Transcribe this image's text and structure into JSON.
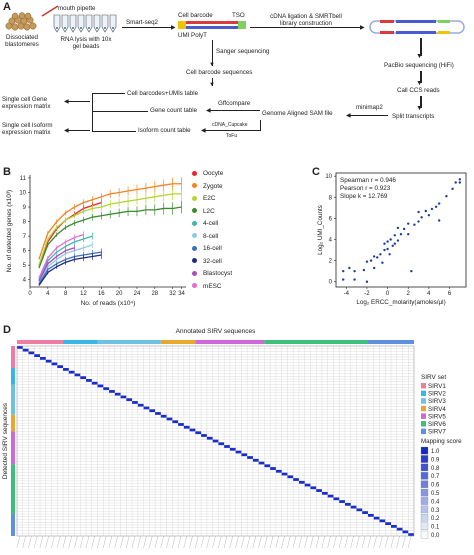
{
  "panels": {
    "a": "A",
    "b": "B",
    "c": "C",
    "d": "D"
  },
  "workflow": {
    "dissociated": "Dissociated\nblastomeres",
    "mouth_pipette": "mouth pipette",
    "rna_lysis": "RNA lysis with 10x\ngel beads",
    "smart_seq2": "Smart-seq2",
    "cell_barcode": "Cell barcode",
    "tso": "TSO",
    "umi_polyt": "UMI PolyT",
    "cdna_ligation": "cDNA ligation & SMRTbell\nlibrary construction",
    "sanger": "Sanger sequencing",
    "cell_barcode_seqs": "Cell barcode sequences",
    "pacbio": "PacBio sequencing (HiFi)",
    "cell_barcodes_umis": "Cell barcodes+UMIs table",
    "call_ccs": "Call CCS reads",
    "single_cell_gene": "Single cell Gene\nexpression matrix",
    "gffcompare": "Gffcompare",
    "gene_count": "Gene count table",
    "genome_aligned": "Genome Aligned SAM file",
    "minimap2": "minimap2",
    "split_transcripts": "Split transcripts",
    "single_cell_isoform": "Single cell Isoform\nexpression matrix",
    "isoform_count": "Isoform count table",
    "cdna_cupcake": "cDNA_Cupcake",
    "tofu": "ToFu"
  },
  "chart_data": [
    {
      "type": "line",
      "panel": "B",
      "xlabel": "No. of reads (x10⁴)",
      "ylabel": "No. of detected genes (x10³)",
      "x_ticks": [
        0,
        4,
        8,
        12,
        16,
        20,
        24,
        28,
        32,
        34
      ],
      "y_ticks": [
        4,
        5,
        6,
        7,
        8,
        9,
        10,
        11
      ],
      "xlim": [
        0,
        35
      ],
      "ylim": [
        3.5,
        11.2
      ],
      "series": [
        {
          "name": "Oocyte",
          "color": "#e8262e",
          "x": [
            2,
            4,
            6,
            8,
            10,
            12,
            14,
            16
          ],
          "y": [
            5.0,
            6.6,
            7.5,
            8.1,
            8.5,
            8.9,
            9.1,
            9.3
          ]
        },
        {
          "name": "Zygote",
          "color": "#f58220",
          "x": [
            2,
            4,
            6,
            8,
            10,
            12,
            14,
            16,
            18,
            20,
            22,
            24,
            26,
            28,
            30,
            32,
            34
          ],
          "y": [
            5.4,
            7.2,
            8.0,
            8.6,
            9.0,
            9.3,
            9.5,
            9.7,
            9.9,
            10.0,
            10.1,
            10.2,
            10.3,
            10.4,
            10.5,
            10.6,
            10.6
          ]
        },
        {
          "name": "E2C",
          "color": "#b5d334",
          "x": [
            2,
            4,
            6,
            8,
            10,
            12,
            14,
            16,
            18,
            20,
            22,
            24,
            26,
            28,
            30,
            32,
            34
          ],
          "y": [
            5.0,
            6.8,
            7.6,
            8.1,
            8.4,
            8.7,
            8.9,
            9.0,
            9.2,
            9.3,
            9.4,
            9.5,
            9.6,
            9.7,
            9.8,
            9.9,
            9.9
          ]
        },
        {
          "name": "L2C",
          "color": "#3c8a2e",
          "x": [
            2,
            4,
            6,
            8,
            10,
            12,
            14,
            16,
            18,
            20,
            22,
            24,
            26,
            28,
            30,
            32,
            34
          ],
          "y": [
            4.8,
            6.4,
            7.1,
            7.6,
            7.9,
            8.1,
            8.3,
            8.4,
            8.5,
            8.6,
            8.7,
            8.7,
            8.8,
            8.8,
            8.9,
            8.9,
            9.0
          ]
        },
        {
          "name": "4-cell",
          "color": "#3db7b0",
          "x": [
            2,
            4,
            6,
            8,
            10,
            12,
            14
          ],
          "y": [
            4.0,
            5.3,
            5.9,
            6.3,
            6.6,
            6.8,
            7.0
          ]
        },
        {
          "name": "8-cell",
          "color": "#8fc9e6",
          "x": [
            2,
            4,
            6,
            8,
            10,
            12,
            14
          ],
          "y": [
            3.8,
            4.9,
            5.4,
            5.8,
            6.0,
            6.2,
            6.4
          ]
        },
        {
          "name": "16-cell",
          "color": "#3a6fc4",
          "x": [
            2,
            4,
            6,
            8,
            10,
            12,
            14,
            16
          ],
          "y": [
            3.7,
            4.7,
            5.1,
            5.4,
            5.6,
            5.7,
            5.8,
            5.9
          ]
        },
        {
          "name": "32-cell",
          "color": "#1f2a80",
          "x": [
            2,
            4,
            6,
            8,
            10,
            12,
            14,
            16
          ],
          "y": [
            3.6,
            4.5,
            4.9,
            5.2,
            5.4,
            5.5,
            5.6,
            5.7
          ]
        },
        {
          "name": "Blastocyst",
          "color": "#a64fc4",
          "x": [
            2,
            4,
            6,
            8,
            10
          ],
          "y": [
            3.9,
            5.1,
            5.6,
            6.0,
            6.2
          ]
        },
        {
          "name": "mESC",
          "color": "#e46ad1",
          "x": [
            2,
            4,
            6,
            8,
            10,
            12
          ],
          "y": [
            4.1,
            5.5,
            6.2,
            6.6,
            6.9,
            7.1
          ]
        }
      ]
    },
    {
      "type": "scatter",
      "panel": "C",
      "xlabel": "Log₂ ERCC_molarity(amoles/μl)",
      "ylabel": "Log₂ UMI_Counts",
      "x_ticks": [
        -4,
        -2,
        0,
        2,
        4,
        6
      ],
      "y_ticks": [
        0,
        2,
        4,
        6,
        8,
        10
      ],
      "xlim": [
        -5,
        7.6
      ],
      "ylim": [
        -0.5,
        10.3
      ],
      "annotations": [
        "Spearman r = 0.946",
        "Pearson r =  0.923",
        "Slope k = 12.769"
      ],
      "points": [
        [
          -4.3,
          0.2
        ],
        [
          -4.3,
          1.0
        ],
        [
          -3.7,
          1.3
        ],
        [
          -3.2,
          0.2
        ],
        [
          -3.2,
          1.0
        ],
        [
          -2.3,
          1.1
        ],
        [
          -2.0,
          0.0
        ],
        [
          -2.0,
          1.9
        ],
        [
          -1.6,
          2.0
        ],
        [
          -1.3,
          1.3
        ],
        [
          -1.3,
          2.4
        ],
        [
          -1.0,
          2.3
        ],
        [
          -0.7,
          2.6
        ],
        [
          -0.5,
          1.8
        ],
        [
          -0.3,
          3.0
        ],
        [
          -0.3,
          3.6
        ],
        [
          0.0,
          3.1
        ],
        [
          0.0,
          3.8
        ],
        [
          0.2,
          2.6
        ],
        [
          0.3,
          4.0
        ],
        [
          0.5,
          3.4
        ],
        [
          0.7,
          3.6
        ],
        [
          0.7,
          4.4
        ],
        [
          1.0,
          3.9
        ],
        [
          1.0,
          5.1
        ],
        [
          1.3,
          4.5
        ],
        [
          1.6,
          5.0
        ],
        [
          2.0,
          4.5
        ],
        [
          2.0,
          5.5
        ],
        [
          2.3,
          1.0
        ],
        [
          2.6,
          5.4
        ],
        [
          3.0,
          5.7
        ],
        [
          3.0,
          6.6
        ],
        [
          3.3,
          6.1
        ],
        [
          3.7,
          6.7
        ],
        [
          4.0,
          6.3
        ],
        [
          4.3,
          6.9
        ],
        [
          4.7,
          7.1
        ],
        [
          5.0,
          7.4
        ],
        [
          5.0,
          5.8
        ],
        [
          5.7,
          8.1
        ],
        [
          6.3,
          8.8
        ],
        [
          6.6,
          9.4
        ],
        [
          7.0,
          9.7
        ],
        [
          7.0,
          9.4
        ]
      ]
    },
    {
      "type": "heatmap",
      "panel": "D",
      "title": "Annotated SIRV sequences",
      "ylabel": "Detected SIRV sequences",
      "n": 69,
      "legend_title": "SIRV set",
      "sirv_sets": [
        {
          "name": "SIRV1",
          "color": "#f07ca3",
          "count": 8
        },
        {
          "name": "SIRV2",
          "color": "#37b6e8",
          "count": 6
        },
        {
          "name": "SIRV3",
          "color": "#6dc2e2",
          "count": 11
        },
        {
          "name": "SIRV4",
          "color": "#e8a830",
          "count": 6
        },
        {
          "name": "SIRV5",
          "color": "#cf68d8",
          "count": 12
        },
        {
          "name": "SIRV6",
          "color": "#3ec07a",
          "count": 18
        },
        {
          "name": "SIRV7",
          "color": "#5f8fe0",
          "count": 8
        }
      ],
      "score_title": "Mapping score",
      "score_ticks": [
        "1.0",
        "0.9",
        "0.8",
        "0.7",
        "0.6",
        "0.5",
        "0.4",
        "0.3",
        "0.2",
        "0.1",
        "0.0"
      ]
    }
  ]
}
